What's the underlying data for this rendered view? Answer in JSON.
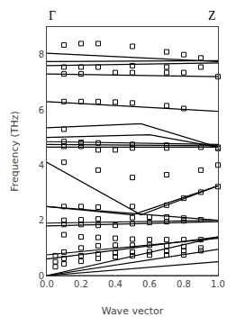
{
  "chart_data": {
    "type": "line",
    "annotations": [
      "Γ",
      "Z"
    ],
    "xlabel": "Wave vector",
    "ylabel": "Frequency (THz)",
    "xlim": [
      0.0,
      1.0
    ],
    "ylim": [
      0.0,
      9.0
    ],
    "xticks": [
      {
        "value": 0.0,
        "label": "0.0"
      },
      0.2,
      0.4,
      0.6,
      0.8,
      {
        "value": 1.0,
        "label": "1.0"
      }
    ],
    "yticks": [
      0,
      2,
      4,
      6,
      8
    ],
    "grid": false,
    "series": [
      {
        "type": "line",
        "color": "#000000",
        "x": [
          0.0,
          1.0
        ],
        "values": [
          0.0,
          0.0
        ]
      },
      {
        "type": "line",
        "color": "#000000",
        "x": [
          0.0,
          1.0
        ],
        "values": [
          0.0,
          0.5
        ]
      },
      {
        "type": "line",
        "color": "#000000",
        "x": [
          0.0,
          1.0
        ],
        "values": [
          0.0,
          0.95
        ]
      },
      {
        "type": "line",
        "color": "#000000",
        "x": [
          0.0,
          1.0
        ],
        "values": [
          0.0,
          1.4
        ]
      },
      {
        "type": "line",
        "color": "#000000",
        "x": [
          0.0,
          1.0
        ],
        "values": [
          0.6,
          1.4
        ]
      },
      {
        "type": "line",
        "color": "#000000",
        "x": [
          0.0,
          1.0
        ],
        "values": [
          0.75,
          1.35
        ]
      },
      {
        "type": "line",
        "color": "#000000",
        "x": [
          0.0,
          1.0
        ],
        "values": [
          1.8,
          1.95
        ]
      },
      {
        "type": "line",
        "color": "#000000",
        "x": [
          0.0,
          1.0
        ],
        "values": [
          1.9,
          2.0
        ]
      },
      {
        "type": "line",
        "color": "#000000",
        "x": [
          0.0,
          1.0
        ],
        "values": [
          2.5,
          2.0
        ]
      },
      {
        "type": "line",
        "color": "#000000",
        "x": [
          0.0,
          0.5,
          1.0
        ],
        "values": [
          2.5,
          2.2,
          3.25
        ]
      },
      {
        "type": "line",
        "color": "#000000",
        "x": [
          0.0,
          0.55,
          1.0
        ],
        "values": [
          4.1,
          2.2,
          3.25
        ]
      },
      {
        "type": "line",
        "color": "#000000",
        "x": [
          0.0,
          1.0
        ],
        "values": [
          4.65,
          4.65
        ]
      },
      {
        "type": "line",
        "color": "#000000",
        "x": [
          0.0,
          1.0
        ],
        "values": [
          4.75,
          4.7
        ]
      },
      {
        "type": "line",
        "color": "#000000",
        "x": [
          0.0,
          1.0
        ],
        "values": [
          4.85,
          4.75
        ]
      },
      {
        "type": "line",
        "color": "#000000",
        "x": [
          0.0,
          0.6,
          1.0
        ],
        "values": [
          5.0,
          5.1,
          4.65
        ]
      },
      {
        "type": "line",
        "color": "#000000",
        "x": [
          0.0,
          0.55,
          1.0
        ],
        "values": [
          5.35,
          5.5,
          4.65
        ]
      },
      {
        "type": "line",
        "color": "#000000",
        "x": [
          0.0,
          1.0
        ],
        "values": [
          6.3,
          5.95
        ]
      },
      {
        "type": "line",
        "color": "#000000",
        "x": [
          0.0,
          1.0
        ],
        "values": [
          8.05,
          7.75
        ]
      },
      {
        "type": "line",
        "color": "#000000",
        "x": [
          0.0,
          1.0
        ],
        "values": [
          7.75,
          7.78
        ]
      },
      {
        "type": "line",
        "color": "#000000",
        "x": [
          0.0,
          1.0
        ],
        "values": [
          7.6,
          7.7
        ]
      },
      {
        "type": "line",
        "color": "#000000",
        "x": [
          0.0,
          1.0
        ],
        "values": [
          7.3,
          7.2
        ]
      },
      {
        "type": "scatter",
        "color": "#000000",
        "marker": "square-open",
        "x": [
          0.1,
          0.2,
          0.3,
          0.5,
          0.7,
          0.8,
          0.9,
          0.1,
          0.2,
          0.3,
          0.5,
          0.7,
          0.9,
          0.1,
          0.2,
          0.4,
          0.5,
          0.7,
          0.8,
          1.0,
          0.1,
          0.2,
          0.3,
          0.4,
          0.5,
          0.7,
          0.8,
          0.1,
          0.2,
          0.3,
          0.4,
          0.1,
          0.2,
          0.3,
          0.5,
          0.7,
          0.9,
          1.0,
          0.1,
          0.2,
          0.5,
          0.7,
          1.0,
          0.1,
          0.3,
          0.5,
          0.7,
          0.9,
          1.0,
          0.1,
          0.2,
          0.3,
          0.5,
          0.7,
          0.8,
          0.9,
          1.0,
          0.1,
          0.2,
          0.3,
          0.5,
          0.6,
          0.7,
          0.8,
          0.9,
          0.1,
          0.2,
          0.3,
          0.4,
          0.5,
          0.6,
          0.7,
          0.8,
          0.1,
          0.2,
          0.3,
          0.4,
          0.5,
          0.6,
          0.7,
          0.8,
          0.9,
          0.05,
          0.1,
          0.2,
          0.3,
          0.4,
          0.5,
          0.6,
          0.7,
          0.8,
          0.9,
          0.05,
          0.1,
          0.2,
          0.3,
          0.4,
          0.5,
          0.6,
          0.7,
          0.8,
          0.9,
          0.05,
          0.1,
          0.2,
          0.3,
          0.4,
          0.5,
          0.6,
          0.7,
          0.8
        ],
        "values": [
          8.35,
          8.4,
          8.4,
          8.3,
          8.1,
          8.0,
          7.88,
          7.55,
          7.55,
          7.55,
          7.6,
          7.55,
          7.55,
          7.3,
          7.3,
          7.35,
          7.35,
          7.35,
          7.35,
          7.2,
          6.3,
          6.3,
          6.3,
          6.28,
          6.25,
          6.15,
          6.05,
          5.3,
          4.8,
          4.55,
          4.55,
          4.85,
          4.82,
          4.8,
          4.75,
          4.72,
          4.65,
          4.65,
          4.68,
          4.68,
          4.62,
          4.62,
          4.6,
          4.1,
          3.82,
          3.55,
          3.65,
          3.82,
          4.0,
          2.5,
          2.5,
          2.48,
          2.5,
          2.55,
          2.8,
          3.02,
          3.22,
          2.0,
          2.02,
          2.05,
          2.1,
          2.12,
          2.12,
          2.08,
          2.02,
          1.85,
          1.85,
          1.82,
          1.82,
          1.88,
          1.92,
          1.95,
          1.98,
          1.48,
          1.4,
          1.38,
          1.35,
          1.32,
          1.3,
          1.3,
          1.3,
          1.3,
          0.72,
          0.85,
          1.0,
          1.08,
          1.1,
          1.1,
          1.1,
          1.08,
          1.05,
          1.0,
          0.5,
          0.62,
          0.72,
          0.78,
          0.82,
          0.85,
          0.86,
          0.88,
          0.9,
          0.9,
          0.32,
          0.42,
          0.52,
          0.62,
          0.68,
          0.72,
          0.74,
          0.75,
          0.75
        ]
      }
    ]
  }
}
